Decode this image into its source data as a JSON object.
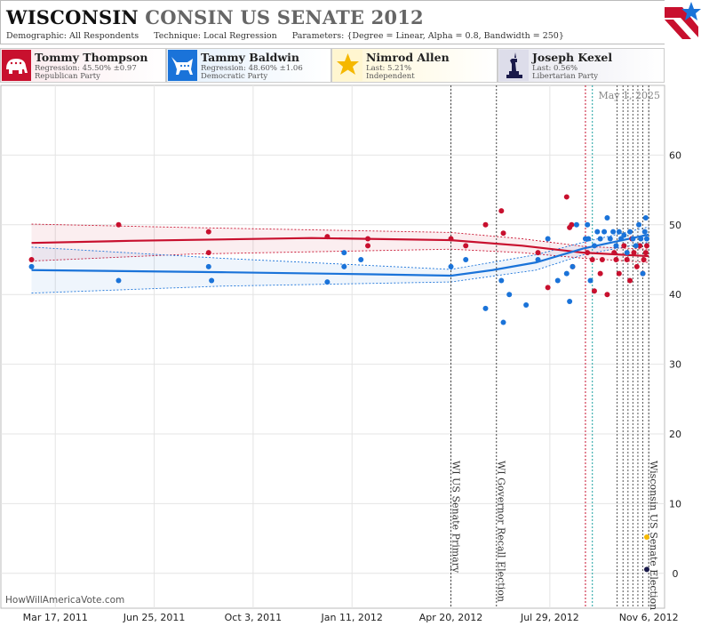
{
  "header": {
    "title_state": "WISCONSIN",
    "title_rest": "CONSIN US SENATE 2012",
    "demographic_label": "Demographic:",
    "demographic_value": "All Respondents",
    "technique_label": "Technique:",
    "technique_value": "Local Regression",
    "parameters_label": "Parameters:",
    "parameters_value": "{Degree = Linear, Alpha = 0.8, Bandwidth = 250}"
  },
  "candidates": [
    {
      "name": "Tommy  Thompson",
      "line1": "Regression: 45.50% ±0.97",
      "line2": "Republican Party",
      "color": "#c8102e",
      "icon": "elephant-icon"
    },
    {
      "name": "Tammy Baldwin",
      "line1": "Regression: 48.60% ±1.06",
      "line2": "Democratic Party",
      "color": "#1a73d9",
      "icon": "donkey-icon"
    },
    {
      "name": "Nimrod Allen",
      "line1": "Last: 5.21%",
      "line2": "Independent",
      "color": "#f5b800",
      "icon": "star-icon"
    },
    {
      "name": "Joseph Kexel",
      "line1": "Last: 0.56%",
      "line2": "Libertarian Party",
      "color": "#1a1a4a",
      "icon": "liberty-statue-icon"
    }
  ],
  "watermark": "HowWillAmericaVote.com",
  "current_date": "May 1, 2025",
  "chart_data": {
    "type": "scatter",
    "x_axis": {
      "type": "date",
      "range": [
        "2011-01-21",
        "2012-11-22"
      ],
      "ticks": [
        "Mar 17, 2011",
        "Jun 25, 2011",
        "Oct 3, 2011",
        "Jan 11, 2012",
        "Apr 20, 2012",
        "Jul 29, 2012",
        "Nov 6, 2012"
      ]
    },
    "y_axis": {
      "range": [
        -5,
        70
      ],
      "ticks": [
        0,
        10,
        20,
        30,
        40,
        50,
        60
      ],
      "position": "right"
    },
    "grid": true,
    "events": [
      {
        "date": "2012-04-20",
        "label": "WI US Senate Primary"
      },
      {
        "date": "2012-06-05",
        "label": "WI Governor Recall Election"
      },
      {
        "date": "2012-11-06",
        "label": "Wisconsin US Senate Election"
      }
    ],
    "series": [
      {
        "name": "Tommy  Thompson",
        "color": "#c8102e",
        "points": [
          [
            "2011-02-21",
            45
          ],
          [
            "2011-05-20",
            50
          ],
          [
            "2011-08-19",
            49
          ],
          [
            "2011-08-19",
            46
          ],
          [
            "2011-12-17",
            48.3
          ],
          [
            "2012-01-27",
            48
          ],
          [
            "2012-01-27",
            47
          ],
          [
            "2012-04-20",
            48
          ],
          [
            "2012-05-05",
            47
          ],
          [
            "2012-05-25",
            50
          ],
          [
            "2012-06-10",
            52
          ],
          [
            "2012-06-12",
            48.8
          ],
          [
            "2012-07-17",
            46
          ],
          [
            "2012-07-27",
            41
          ],
          [
            "2012-08-15",
            54
          ],
          [
            "2012-08-18",
            49.6
          ],
          [
            "2012-08-20",
            50
          ],
          [
            "2012-08-21",
            44
          ],
          [
            "2012-09-05",
            46
          ],
          [
            "2012-09-10",
            45
          ],
          [
            "2012-09-12",
            40.5
          ],
          [
            "2012-09-18",
            43
          ],
          [
            "2012-09-20",
            45
          ],
          [
            "2012-09-25",
            40
          ],
          [
            "2012-10-02",
            46
          ],
          [
            "2012-10-04",
            45
          ],
          [
            "2012-10-07",
            43
          ],
          [
            "2012-10-12",
            47
          ],
          [
            "2012-10-15",
            45
          ],
          [
            "2012-10-18",
            42
          ],
          [
            "2012-10-20",
            48
          ],
          [
            "2012-10-22",
            46
          ],
          [
            "2012-10-25",
            44
          ],
          [
            "2012-10-28",
            47
          ],
          [
            "2012-10-31",
            43
          ],
          [
            "2012-11-01",
            45
          ],
          [
            "2012-11-03",
            46
          ],
          [
            "2012-11-04",
            47
          ]
        ],
        "fit": [
          [
            "2011-02-21",
            47.4
          ],
          [
            "2011-06-01",
            47.7
          ],
          [
            "2011-12-01",
            48.1
          ],
          [
            "2012-04-20",
            47.8
          ],
          [
            "2012-07-01",
            47.0
          ],
          [
            "2012-09-01",
            46.0
          ],
          [
            "2012-11-06",
            45.5
          ]
        ],
        "band": [
          [
            "2011-02-21",
            44.8,
            50.1
          ],
          [
            "2011-08-01",
            45.8,
            49.6
          ],
          [
            "2012-04-20",
            46.5,
            48.9
          ],
          [
            "2012-07-01",
            46.0,
            48.0
          ],
          [
            "2012-09-01",
            45.2,
            46.9
          ],
          [
            "2012-11-06",
            44.6,
            46.5
          ]
        ]
      },
      {
        "name": "Tammy Baldwin",
        "color": "#1a73d9",
        "points": [
          [
            "2011-02-21",
            44
          ],
          [
            "2011-05-20",
            42
          ],
          [
            "2011-08-19",
            44
          ],
          [
            "2011-08-22",
            42
          ],
          [
            "2011-12-17",
            41.8
          ],
          [
            "2012-01-03",
            46
          ],
          [
            "2012-01-03",
            44
          ],
          [
            "2012-01-20",
            45
          ],
          [
            "2012-04-20",
            44
          ],
          [
            "2012-05-05",
            45
          ],
          [
            "2012-05-25",
            38
          ],
          [
            "2012-06-10",
            42
          ],
          [
            "2012-06-12",
            36
          ],
          [
            "2012-06-18",
            40
          ],
          [
            "2012-07-05",
            38.5
          ],
          [
            "2012-07-17",
            45
          ],
          [
            "2012-07-27",
            48
          ],
          [
            "2012-08-06",
            42
          ],
          [
            "2012-08-15",
            43
          ],
          [
            "2012-08-18",
            39
          ],
          [
            "2012-08-21",
            44
          ],
          [
            "2012-08-25",
            50
          ],
          [
            "2012-09-03",
            48
          ],
          [
            "2012-09-05",
            50
          ],
          [
            "2012-09-06",
            48
          ],
          [
            "2012-09-08",
            42
          ],
          [
            "2012-09-12",
            47
          ],
          [
            "2012-09-15",
            49
          ],
          [
            "2012-09-18",
            48
          ],
          [
            "2012-09-22",
            49
          ],
          [
            "2012-09-25",
            51
          ],
          [
            "2012-09-28",
            48
          ],
          [
            "2012-10-01",
            49
          ],
          [
            "2012-10-04",
            47
          ],
          [
            "2012-10-07",
            49
          ],
          [
            "2012-10-09",
            48
          ],
          [
            "2012-10-12",
            48.5
          ],
          [
            "2012-10-15",
            46
          ],
          [
            "2012-10-18",
            49
          ],
          [
            "2012-10-21",
            48
          ],
          [
            "2012-10-24",
            47
          ],
          [
            "2012-10-27",
            50
          ],
          [
            "2012-10-29",
            48
          ],
          [
            "2012-10-31",
            43
          ],
          [
            "2012-11-02",
            49
          ],
          [
            "2012-11-03",
            51
          ],
          [
            "2012-11-04",
            48
          ]
        ],
        "fit": [
          [
            "2011-02-21",
            43.5
          ],
          [
            "2011-09-01",
            43.2
          ],
          [
            "2012-02-01",
            42.9
          ],
          [
            "2012-04-20",
            42.7
          ],
          [
            "2012-06-01",
            43.5
          ],
          [
            "2012-07-15",
            44.6
          ],
          [
            "2012-09-01",
            46.6
          ],
          [
            "2012-11-06",
            48.6
          ]
        ],
        "band": [
          [
            "2011-02-21",
            40.2,
            46.8
          ],
          [
            "2011-09-01",
            41.2,
            45.2
          ],
          [
            "2012-04-20",
            41.8,
            43.6
          ],
          [
            "2012-07-15",
            43.5,
            45.7
          ],
          [
            "2012-09-01",
            45.7,
            47.5
          ],
          [
            "2012-11-06",
            47.5,
            49.7
          ]
        ]
      },
      {
        "name": "Nimrod Allen",
        "color": "#f5b800",
        "points": [
          [
            "2012-11-04",
            5.21
          ]
        ]
      },
      {
        "name": "Joseph Kexel",
        "color": "#1a1a4a",
        "points": [
          [
            "2012-11-04",
            0.56
          ]
        ]
      }
    ]
  }
}
